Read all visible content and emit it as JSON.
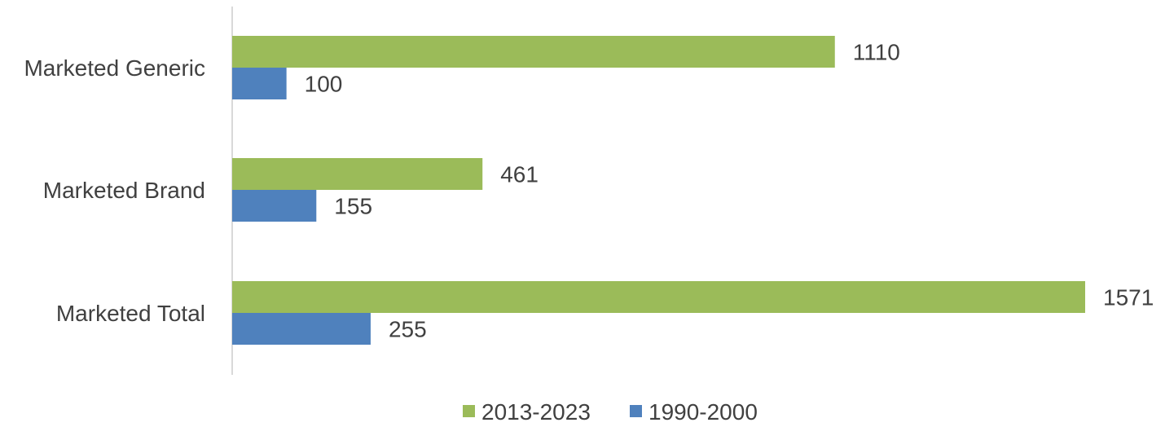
{
  "chart_data": {
    "type": "bar",
    "orientation": "horizontal",
    "categories": [
      "Marketed Generic",
      "Marketed Brand",
      "Marketed Total"
    ],
    "series": [
      {
        "name": "2013-2023",
        "values": [
          1110,
          461,
          1571
        ],
        "color": "#9bbb59"
      },
      {
        "name": "1990-2000",
        "values": [
          100,
          155,
          255
        ],
        "color": "#4f81bd"
      }
    ],
    "xlim": [
      0,
      1571
    ],
    "grid": false,
    "legend": "bottom",
    "data_labels": true
  }
}
